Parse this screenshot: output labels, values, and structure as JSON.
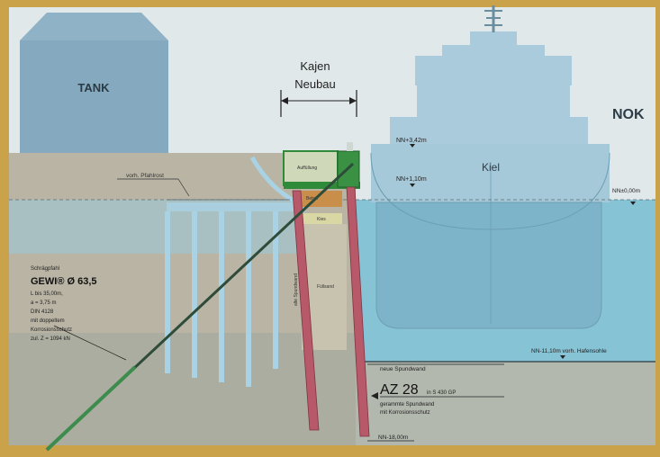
{
  "labels": {
    "tank": "TANK",
    "kajen": "Kajen",
    "neubau": "Neubau",
    "nok": "NOK",
    "kiel": "Kiel",
    "nn_top": "NN+3,42m",
    "nn_mid": "NN+1,10m",
    "nn_right": "NN±0,00m",
    "vorh_pfahlrost": "vorh. Pfahlrost",
    "aufhoehung": "Auffüllung",
    "beton": "Beton",
    "kies": "Kies",
    "fuellsand": "Füllsand",
    "spundwand_side": "alte Spundwand",
    "anchor_title": "Schrägpfahl",
    "anchor_type": "GEWI® Ø 63,5",
    "anchor_line1": "L bis 35,00m,",
    "anchor_line2": "a = 3,75 m",
    "anchor_line3": "DIN 4128",
    "anchor_line4": "mit doppeltem",
    "anchor_line5": "Korrosionsschutz",
    "anchor_line6": "zul. Z = 1094 kN",
    "nn_harbor": "NN-11,10m vorh. Hafensohle",
    "neue_spundwand": "neue Spundwand",
    "az_main": "AZ 28",
    "az_small": "in S 430 GP",
    "gerammt": "gerammte Spundwand",
    "korrosion": "mit Korrosionsschutz",
    "nn_bottom": "NN-18,00m"
  },
  "colors": {
    "frame": "#c9a24a",
    "sky": "#dfe7ea",
    "water": "#7fbfd2",
    "soil": "#b7b1a0",
    "tank": "#84a9bf",
    "ship": "#9cc1d4",
    "sheet_pile": "#b8596a",
    "anchor": "#2f4f3c",
    "quay_green": "#2f8a3a"
  }
}
